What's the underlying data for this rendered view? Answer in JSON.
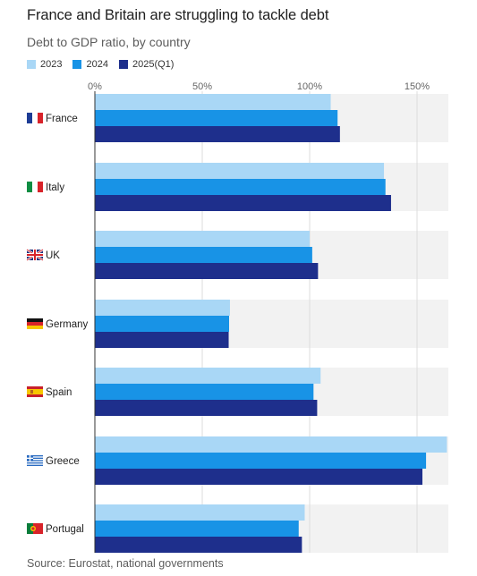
{
  "title": "France and Britain are struggling to tackle debt",
  "subtitle": "Debt to GDP ratio, by country",
  "source": "Source: Eurostat, national governments",
  "legend": [
    {
      "label": "2023",
      "color": "#a9d7f6"
    },
    {
      "label": "2024",
      "color": "#1893e6"
    },
    {
      "label": "2025(Q1)",
      "color": "#1e2f8c"
    }
  ],
  "chart_data": {
    "type": "bar",
    "orientation": "horizontal",
    "categories": [
      "France",
      "Italy",
      "UK",
      "Germany",
      "Spain",
      "Greece",
      "Portugal"
    ],
    "series": [
      {
        "name": "2023",
        "color": "#a9d7f6",
        "values": [
          109.8,
          134.6,
          100.0,
          62.9,
          105.1,
          163.9,
          97.7
        ]
      },
      {
        "name": "2024",
        "color": "#1893e6",
        "values": [
          113.0,
          135.3,
          101.2,
          62.5,
          101.8,
          154.2,
          94.9
        ]
      },
      {
        "name": "2025(Q1)",
        "color": "#1e2f8c",
        "values": [
          114.1,
          137.9,
          103.9,
          62.3,
          103.5,
          152.5,
          96.4
        ]
      }
    ],
    "xticks": [
      0,
      50,
      100,
      150
    ],
    "xtick_labels": [
      "0%",
      "50%",
      "100%",
      "150%"
    ],
    "xlim": [
      0,
      165
    ],
    "grid": true,
    "legend_position": "top-left",
    "flags": [
      "france-flag",
      "italy-flag",
      "uk-flag",
      "germany-flag",
      "spain-flag",
      "greece-flag",
      "portugal-flag"
    ]
  }
}
